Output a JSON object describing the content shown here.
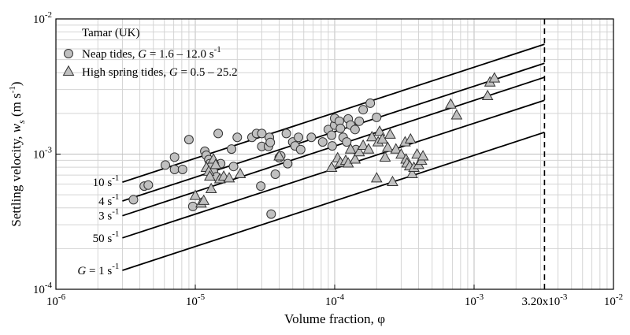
{
  "chart_data": {
    "type": "scatter",
    "xscale": "log",
    "yscale": "log",
    "xlim": [
      1e-06,
      0.01
    ],
    "ylim": [
      0.0001,
      0.01
    ],
    "xlabel": {
      "main": "Volume fraction, ",
      "symbol": "φ"
    },
    "ylabel": {
      "main": "Settling velocity, ",
      "symbol": "w",
      "sub": "s",
      "unit": " (m s",
      "unit_sup": "-1",
      "unit_end": ")"
    },
    "x_ticks": [
      {
        "value": 1e-06,
        "base": "10",
        "exp": "-6"
      },
      {
        "value": 1e-05,
        "base": "10",
        "exp": "-5"
      },
      {
        "value": 0.0001,
        "base": "10",
        "exp": "-4"
      },
      {
        "value": 0.001,
        "base": "10",
        "exp": "-3"
      },
      {
        "value": 0.01,
        "base": "10",
        "exp": "-2"
      }
    ],
    "y_ticks": [
      {
        "value": 0.0001,
        "base": "10",
        "exp": "-4"
      },
      {
        "value": 0.001,
        "base": "10",
        "exp": "-3"
      },
      {
        "value": 0.01,
        "base": "10",
        "exp": "-2"
      }
    ],
    "vline": {
      "x": 0.0032,
      "label": "3.20x10",
      "label_exp": "-3",
      "style": "dashed"
    },
    "legend": {
      "title": "Tamar (UK)",
      "placement": "top-left",
      "entries": [
        {
          "marker": "circle",
          "text": "Neap tides, ",
          "italic": "G",
          "rest": " = 1.6 – 12.0 s",
          "sup": "-1"
        },
        {
          "marker": "triangle",
          "text": "High spring tides, ",
          "italic": "G",
          "rest": " = 0.5 – 25.2",
          "sup": ""
        }
      ]
    },
    "model_lines": [
      {
        "x_start": 3e-06,
        "x_end": 0.0032,
        "y_start": 0.00062,
        "y_end": 0.0065,
        "label": "10 s",
        "label_sup": "-1",
        "label_italic": ""
      },
      {
        "x_start": 3e-06,
        "x_end": 0.0032,
        "y_start": 0.00045,
        "y_end": 0.0047,
        "label": "4 s",
        "label_sup": "-1",
        "label_italic": ""
      },
      {
        "x_start": 3e-06,
        "x_end": 0.0032,
        "y_start": 0.00035,
        "y_end": 0.0037,
        "label": "3 s",
        "label_sup": "-1",
        "label_italic": ""
      },
      {
        "x_start": 3e-06,
        "x_end": 0.0032,
        "y_start": 0.00024,
        "y_end": 0.0025,
        "label": "50 s",
        "label_sup": "-1",
        "label_italic": ""
      },
      {
        "x_start": 3e-06,
        "x_end": 0.0032,
        "y_start": 0.000138,
        "y_end": 0.00145,
        "label": " = 1 s",
        "label_sup": "-1",
        "label_italic": "G"
      }
    ],
    "series": [
      {
        "name": "Neap tides",
        "marker": "circle",
        "points": [
          [
            3.6e-06,
            0.00046
          ],
          [
            4.3e-06,
            0.00058
          ],
          [
            4.6e-06,
            0.00059
          ],
          [
            6.1e-06,
            0.00083
          ],
          [
            7.1e-06,
            0.00095
          ],
          [
            7.1e-06,
            0.00077
          ],
          [
            8.1e-06,
            0.00077
          ],
          [
            9e-06,
            0.00128
          ],
          [
            9.6e-06,
            0.00041
          ],
          [
            1.17e-05,
            0.00105
          ],
          [
            1.2e-05,
            0.00098
          ],
          [
            1.25e-05,
            0.00091
          ],
          [
            1.27e-05,
            0.00085
          ],
          [
            1.3e-05,
            0.00081
          ],
          [
            1.35e-05,
            0.00074
          ],
          [
            1.42e-05,
            0.00068
          ],
          [
            1.46e-05,
            0.00142
          ],
          [
            1.52e-05,
            0.00085
          ],
          [
            1.82e-05,
            0.00109
          ],
          [
            1.88e-05,
            0.00081
          ],
          [
            2e-05,
            0.00133
          ],
          [
            2.55e-05,
            0.00133
          ],
          [
            2.75e-05,
            0.00142
          ],
          [
            3e-05,
            0.00142
          ],
          [
            2.95e-05,
            0.00058
          ],
          [
            3e-05,
            0.00114
          ],
          [
            3.35e-05,
            0.00114
          ],
          [
            3.4e-05,
            0.00133
          ],
          [
            3.45e-05,
            0.00122
          ],
          [
            3.5e-05,
            0.00036
          ],
          [
            3.75e-05,
            0.00071
          ],
          [
            4e-05,
            0.00094
          ],
          [
            4.1e-05,
            0.00097
          ],
          [
            4.5e-05,
            0.00142
          ],
          [
            4.6e-05,
            0.00085
          ],
          [
            5e-05,
            0.00123
          ],
          [
            5.2e-05,
            0.00115
          ],
          [
            5.5e-05,
            0.00133
          ],
          [
            5.7e-05,
            0.00108
          ],
          [
            6.8e-05,
            0.00133
          ],
          [
            8.2e-05,
            0.00123
          ],
          [
            9e-05,
            0.00152
          ],
          [
            9.5e-05,
            0.00138
          ],
          [
            9.6e-05,
            0.00115
          ],
          [
            0.0001,
            0.00164
          ],
          [
            0.0001,
            0.00184
          ],
          [
            0.000108,
            0.00175
          ],
          [
            0.00011,
            0.00155
          ],
          [
            0.000115,
            0.00133
          ],
          [
            0.000122,
            0.00123
          ],
          [
            0.000125,
            0.00182
          ],
          [
            0.00013,
            0.00164
          ],
          [
            0.00014,
            0.00152
          ],
          [
            0.000142,
            0.00108
          ],
          [
            0.00015,
            0.00175
          ],
          [
            0.00016,
            0.00213
          ],
          [
            0.00018,
            0.00238
          ],
          [
            0.0002,
            0.00187
          ]
        ]
      },
      {
        "name": "High spring tides",
        "marker": "triangle",
        "points": [
          [
            1e-05,
            0.00049
          ],
          [
            1.1e-05,
            0.00043
          ],
          [
            1.15e-05,
            0.00045
          ],
          [
            1.2e-05,
            0.00079
          ],
          [
            1.25e-05,
            0.00074
          ],
          [
            1.27e-05,
            0.00068
          ],
          [
            1.3e-05,
            0.00055
          ],
          [
            1.35e-05,
            0.00091
          ],
          [
            1.4e-05,
            0.00083
          ],
          [
            1.5e-05,
            0.00065
          ],
          [
            1.6e-05,
            0.00068
          ],
          [
            1.75e-05,
            0.00066
          ],
          [
            2.1e-05,
            0.00071
          ],
          [
            4e-05,
            0.00096
          ],
          [
            9.5e-05,
            0.00079
          ],
          [
            0.000105,
            0.00093
          ],
          [
            0.00011,
            0.00086
          ],
          [
            0.00012,
            0.00089
          ],
          [
            0.000125,
            0.00085
          ],
          [
            0.00013,
            0.00108
          ],
          [
            0.00014,
            0.00091
          ],
          [
            0.00015,
            0.00103
          ],
          [
            0.00016,
            0.00115
          ],
          [
            0.000175,
            0.00108
          ],
          [
            0.000185,
            0.00133
          ],
          [
            0.0002,
            0.00066
          ],
          [
            0.000205,
            0.00122
          ],
          [
            0.00021,
            0.00146
          ],
          [
            0.00022,
            0.00128
          ],
          [
            0.00023,
            0.00094
          ],
          [
            0.00024,
            0.00111
          ],
          [
            0.00025,
            0.00139
          ],
          [
            0.00026,
            0.00062
          ],
          [
            0.000275,
            0.00108
          ],
          [
            0.0003,
            0.00099
          ],
          [
            0.00032,
            0.00122
          ],
          [
            0.000325,
            0.00091
          ],
          [
            0.00033,
            0.00085
          ],
          [
            0.000345,
            0.00081
          ],
          [
            0.00035,
            0.00128
          ],
          [
            0.00036,
            0.00071
          ],
          [
            0.00037,
            0.00079
          ],
          [
            0.00039,
            0.00099
          ],
          [
            0.0004,
            0.00083
          ],
          [
            0.00042,
            0.00089
          ],
          [
            0.00043,
            0.00096
          ],
          [
            0.00068,
            0.00232
          ],
          [
            0.00075,
            0.00193
          ],
          [
            0.00125,
            0.00268
          ],
          [
            0.0013,
            0.00338
          ],
          [
            0.0014,
            0.00362
          ]
        ]
      }
    ]
  }
}
